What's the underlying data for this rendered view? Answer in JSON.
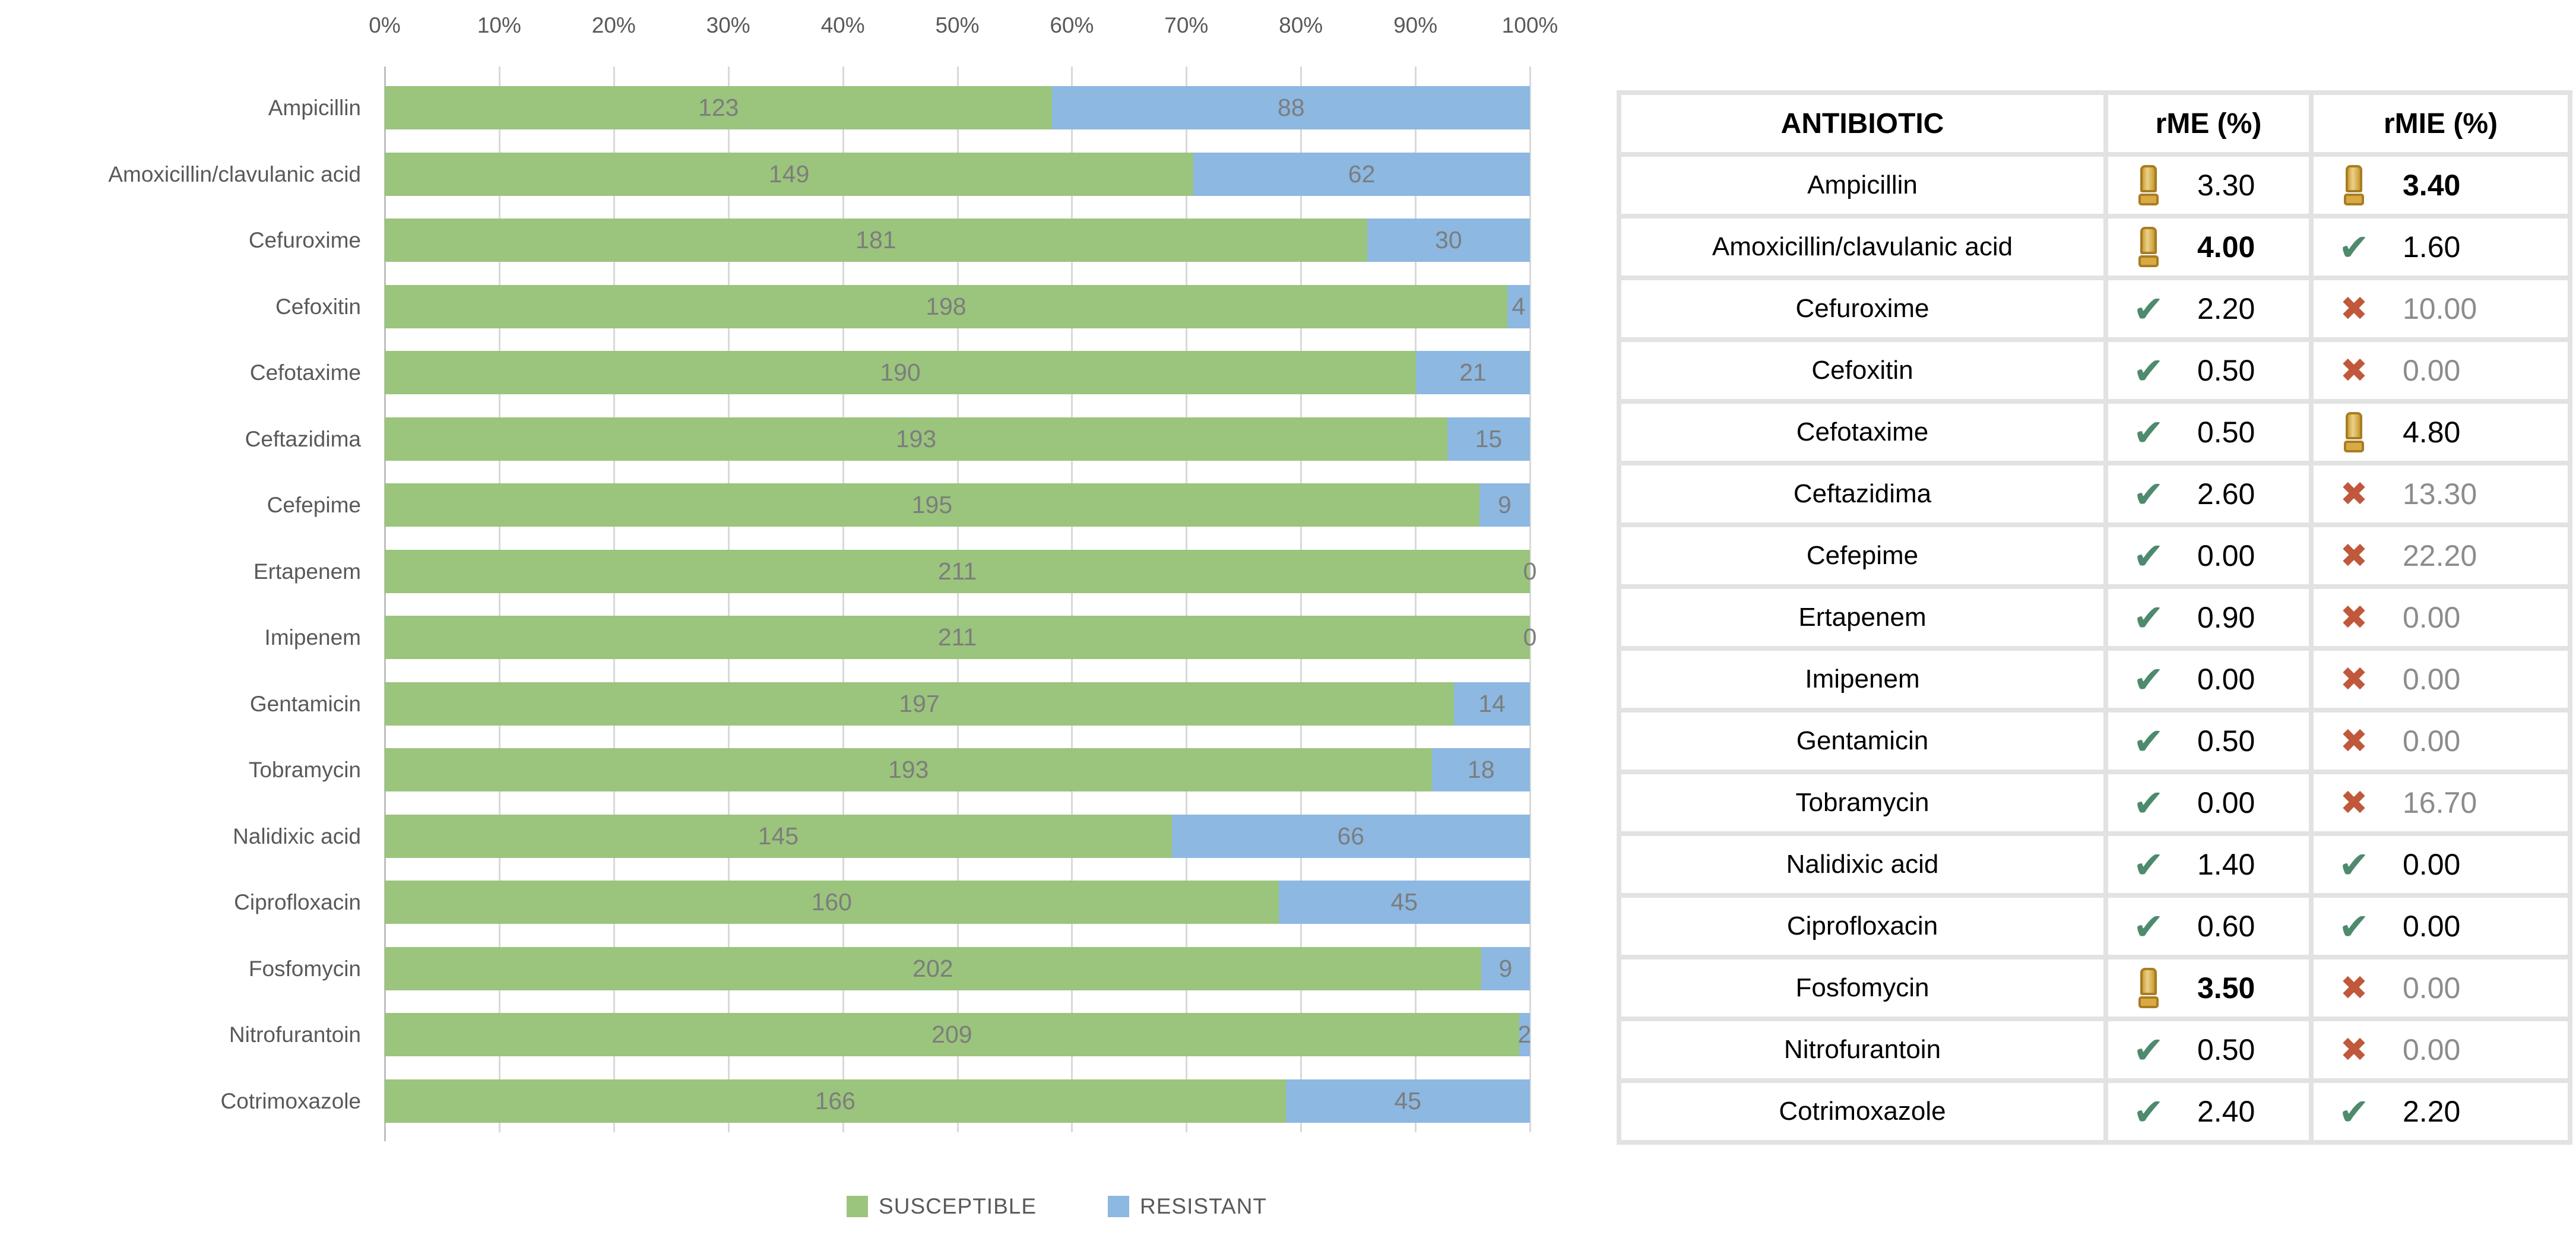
{
  "chart_data": {
    "type": "bar",
    "variant": "horizontal-100pct-stacked",
    "title": "",
    "xlabel": "",
    "ylabel": "",
    "x_axis": {
      "ticks": [
        "0%",
        "10%",
        "20%",
        "30%",
        "40%",
        "50%",
        "60%",
        "70%",
        "80%",
        "90%",
        "100%"
      ],
      "range": [
        0,
        100
      ],
      "position": "top",
      "grid": true
    },
    "categories": [
      "Ampicillin",
      "Amoxicillin/clavulanic acid",
      "Cefuroxime",
      "Cefoxitin",
      "Cefotaxime",
      "Ceftazidima",
      "Cefepime",
      "Ertapenem",
      "Imipenem",
      "Gentamicin",
      "Tobramycin",
      "Nalidixic acid",
      "Ciprofloxacin",
      "Fosfomycin",
      "Nitrofurantoin",
      "Cotrimoxazole"
    ],
    "series": [
      {
        "name": "SUSCEPTIBLE",
        "color": "#9bc47d",
        "values": [
          123,
          149,
          181,
          198,
          190,
          193,
          195,
          211,
          211,
          197,
          193,
          145,
          160,
          202,
          209,
          166
        ]
      },
      {
        "name": "RESISTANT",
        "color": "#8cb8e2",
        "values": [
          88,
          62,
          30,
          4,
          21,
          15,
          9,
          0,
          0,
          14,
          18,
          66,
          45,
          9,
          2,
          45
        ]
      }
    ],
    "legend_position": "bottom"
  },
  "table": {
    "headers": [
      "ANTIBIOTIC",
      "rME (%)",
      "rMIE (%)"
    ],
    "icon_meanings": {
      "check": "green-check-icon",
      "warning": "gold-exclamation-icon",
      "cross": "red-x-icon"
    },
    "rows": [
      {
        "antibiotic": "Ampicillin",
        "rme": {
          "icon": "warning",
          "value": "3.30",
          "bold": false
        },
        "rmie": {
          "icon": "warning",
          "value": "3.40",
          "bold": true
        }
      },
      {
        "antibiotic": "Amoxicillin/clavulanic acid",
        "rme": {
          "icon": "warning",
          "value": "4.00",
          "bold": true
        },
        "rmie": {
          "icon": "check",
          "value": "1.60",
          "bold": false
        }
      },
      {
        "antibiotic": "Cefuroxime",
        "rme": {
          "icon": "check",
          "value": "2.20",
          "bold": false
        },
        "rmie": {
          "icon": "cross",
          "value": "10.00",
          "bold": false
        }
      },
      {
        "antibiotic": "Cefoxitin",
        "rme": {
          "icon": "check",
          "value": "0.50",
          "bold": false
        },
        "rmie": {
          "icon": "cross",
          "value": "0.00",
          "bold": false
        }
      },
      {
        "antibiotic": "Cefotaxime",
        "rme": {
          "icon": "check",
          "value": "0.50",
          "bold": false
        },
        "rmie": {
          "icon": "warning",
          "value": "4.80",
          "bold": false
        }
      },
      {
        "antibiotic": "Ceftazidima",
        "rme": {
          "icon": "check",
          "value": "2.60",
          "bold": false
        },
        "rmie": {
          "icon": "cross",
          "value": "13.30",
          "bold": false
        }
      },
      {
        "antibiotic": "Cefepime",
        "rme": {
          "icon": "check",
          "value": "0.00",
          "bold": false
        },
        "rmie": {
          "icon": "cross",
          "value": "22.20",
          "bold": false
        }
      },
      {
        "antibiotic": "Ertapenem",
        "rme": {
          "icon": "check",
          "value": "0.90",
          "bold": false
        },
        "rmie": {
          "icon": "cross",
          "value": "0.00",
          "bold": false
        }
      },
      {
        "antibiotic": "Imipenem",
        "rme": {
          "icon": "check",
          "value": "0.00",
          "bold": false
        },
        "rmie": {
          "icon": "cross",
          "value": "0.00",
          "bold": false
        }
      },
      {
        "antibiotic": "Gentamicin",
        "rme": {
          "icon": "check",
          "value": "0.50",
          "bold": false
        },
        "rmie": {
          "icon": "cross",
          "value": "0.00",
          "bold": false
        }
      },
      {
        "antibiotic": "Tobramycin",
        "rme": {
          "icon": "check",
          "value": "0.00",
          "bold": false
        },
        "rmie": {
          "icon": "cross",
          "value": "16.70",
          "bold": false
        }
      },
      {
        "antibiotic": "Nalidixic acid",
        "rme": {
          "icon": "check",
          "value": "1.40",
          "bold": false
        },
        "rmie": {
          "icon": "check",
          "value": "0.00",
          "bold": false
        }
      },
      {
        "antibiotic": "Ciprofloxacin",
        "rme": {
          "icon": "check",
          "value": "0.60",
          "bold": false
        },
        "rmie": {
          "icon": "check",
          "value": "0.00",
          "bold": false
        }
      },
      {
        "antibiotic": "Fosfomycin",
        "rme": {
          "icon": "warning",
          "value": "3.50",
          "bold": true
        },
        "rmie": {
          "icon": "cross",
          "value": "0.00",
          "bold": false
        }
      },
      {
        "antibiotic": "Nitrofurantoin",
        "rme": {
          "icon": "check",
          "value": "0.50",
          "bold": false
        },
        "rmie": {
          "icon": "cross",
          "value": "0.00",
          "bold": false
        }
      },
      {
        "antibiotic": "Cotrimoxazole",
        "rme": {
          "icon": "check",
          "value": "2.40",
          "bold": false
        },
        "rmie": {
          "icon": "check",
          "value": "2.20",
          "bold": false
        }
      }
    ]
  },
  "colors": {
    "susceptible_green": "#9bc47d",
    "resistant_blue": "#8cb8e2",
    "gridline": "#d9d9d9",
    "axis_text": "#595959",
    "bar_value_text": "#7d7d7d",
    "check_green": "#4e8a6e",
    "cross_red": "#c0583c",
    "warning_gold": "#d9a943",
    "muted_value_gray": "#8c8c8c",
    "table_border": "#e2e2e2"
  }
}
